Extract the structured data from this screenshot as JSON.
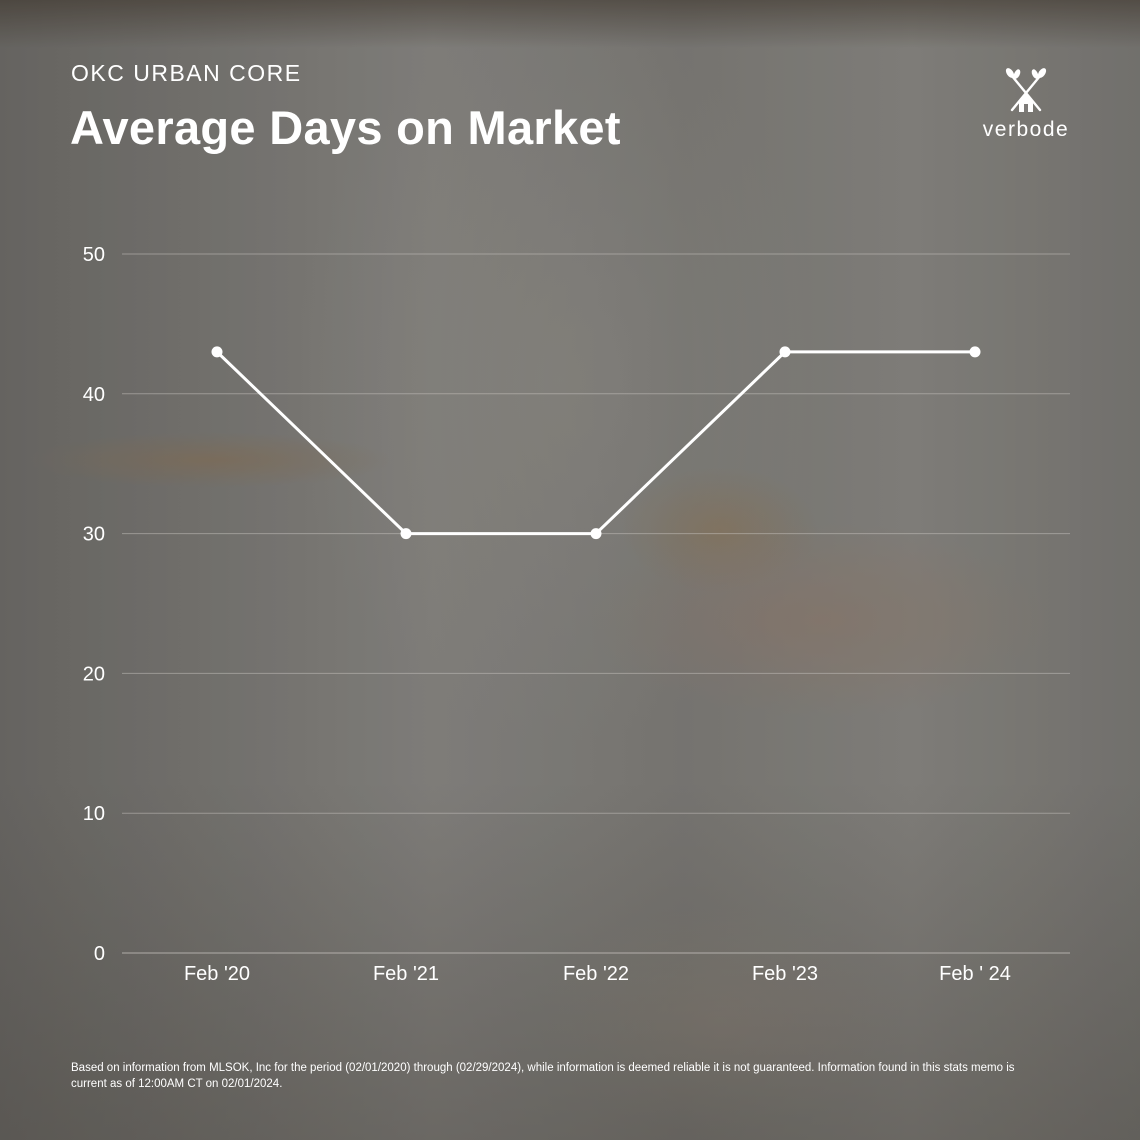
{
  "header": {
    "subtitle": "OKC URBAN CORE",
    "title": "Average Days on Market"
  },
  "logo": {
    "text": "verbode",
    "icon": "house-with-branches-icon"
  },
  "chart_data": {
    "type": "line",
    "title": "Average Days on Market",
    "subtitle": "OKC URBAN CORE",
    "categories": [
      "Feb '20",
      "Feb '21",
      "Feb '22",
      "Feb '23",
      "Feb ' 24"
    ],
    "series": [
      {
        "values": [
          43,
          30,
          30,
          43,
          43
        ]
      }
    ],
    "yticks": [
      0,
      10,
      20,
      30,
      40,
      50
    ],
    "ylim": [
      0,
      50
    ],
    "xlabel": "",
    "ylabel": "",
    "grid": true,
    "line_color": "#ffffff",
    "grid_color": "#c9c6c2"
  },
  "footnote": "Based on information from MLSOK, Inc for the period (02/01/2020) through (02/29/2024), while information is deemed reliable it is not guaranteed. Information found in this stats memo is current as of 12:00AM CT on 02/01/2024."
}
